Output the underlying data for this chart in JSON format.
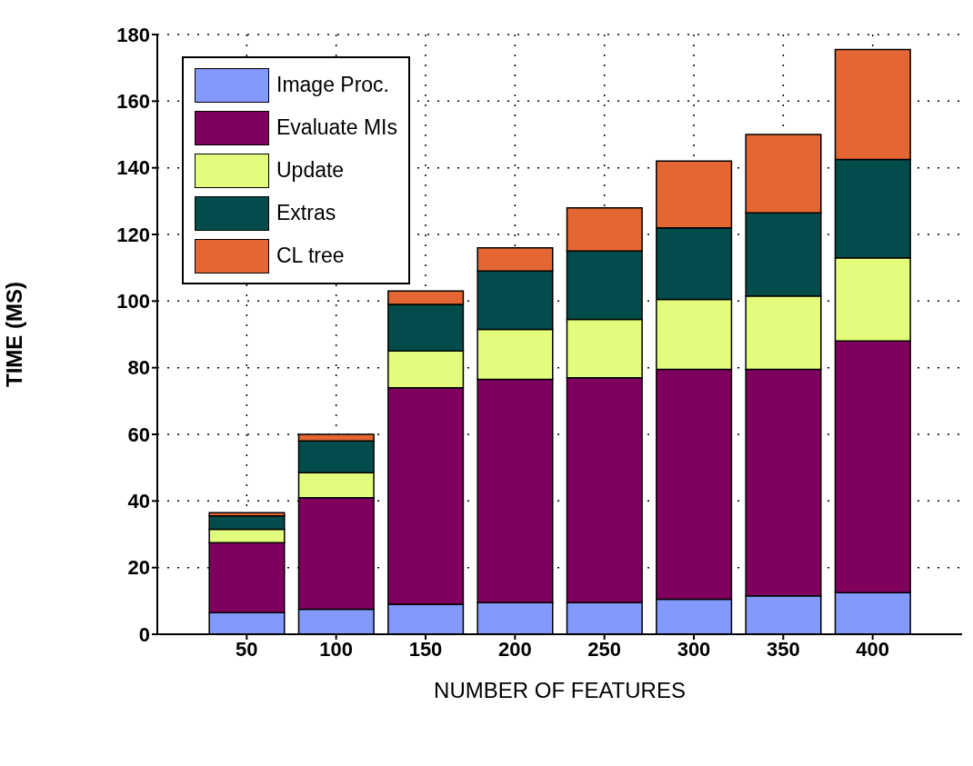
{
  "chart_data": {
    "type": "bar",
    "stacked": true,
    "xlabel": "NUMBER OF FEATURES",
    "ylabel": "TIME (MS)",
    "x": [
      50,
      100,
      150,
      200,
      250,
      300,
      350,
      400
    ],
    "xlim": [
      0,
      450
    ],
    "xticks": [
      50,
      100,
      150,
      200,
      250,
      300,
      350,
      400
    ],
    "ylim": [
      0,
      180
    ],
    "yticks": [
      0,
      20,
      40,
      60,
      80,
      100,
      120,
      140,
      160,
      180
    ],
    "grid": true,
    "legend": "top left",
    "series": [
      {
        "name": "Image Proc.",
        "color": "#8499fc",
        "values": [
          6.5,
          7.5,
          9,
          9.5,
          9.5,
          10.5,
          11.5,
          12.5
        ]
      },
      {
        "name": "Evaluate MIs",
        "color": "#80005e",
        "values": [
          21,
          33.5,
          65,
          67,
          67.5,
          69,
          68,
          75.5
        ]
      },
      {
        "name": "Update",
        "color": "#e3fc7b",
        "values": [
          4,
          7.5,
          11,
          15,
          17.5,
          21,
          22,
          25
        ]
      },
      {
        "name": "Extras",
        "color": "#024c4c",
        "values": [
          4,
          9.5,
          14,
          17.5,
          20.5,
          21.5,
          25,
          29.5
        ]
      },
      {
        "name": "CL tree",
        "color": "#e46633",
        "values": [
          1,
          2,
          4,
          7,
          13,
          20,
          23.5,
          33
        ]
      }
    ]
  }
}
